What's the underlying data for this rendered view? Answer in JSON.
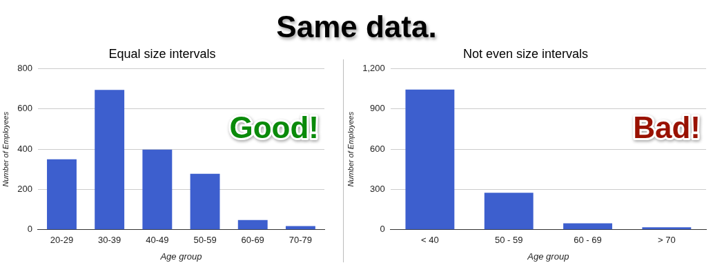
{
  "chart_data": [
    {
      "type": "bar",
      "title": "Equal size intervals",
      "xlabel": "Age group",
      "ylabel": "Number of Employees",
      "annotations": [
        "Same data.",
        "Good!"
      ],
      "categories": [
        "20-29",
        "30-39",
        "40-49",
        "50-59",
        "60-69",
        "70-79"
      ],
      "values": [
        350,
        695,
        398,
        278,
        48,
        18
      ],
      "color": "#3d5fce",
      "ylim": [
        0,
        800
      ],
      "yticks": [
        0,
        200,
        400,
        600,
        800
      ],
      "grid": "y",
      "legend": false
    },
    {
      "type": "bar",
      "title": "Not even size intervals",
      "xlabel": "Age group",
      "ylabel": "Number of Employees",
      "annotations": [
        "Bad!"
      ],
      "categories": [
        "< 40",
        "50 - 59",
        "60 - 69",
        "> 70"
      ],
      "values": [
        1045,
        275,
        48,
        18
      ],
      "color": "#3d5fce",
      "ylim": [
        0,
        1200
      ],
      "yticks": [
        0,
        300,
        600,
        900,
        {
          "value": 1200,
          "label": "1,200"
        }
      ],
      "grid": "y",
      "legend": false
    }
  ]
}
